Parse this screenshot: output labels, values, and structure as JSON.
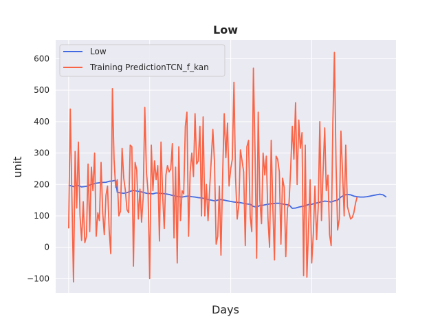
{
  "chart_data": {
    "type": "line",
    "title": "Low",
    "xlabel": "Days",
    "ylabel": "unit",
    "ylim": [
      -145,
      660
    ],
    "xlim": [
      -8,
      202
    ],
    "yticks": [
      -100,
      0,
      100,
      200,
      300,
      400,
      500,
      600
    ],
    "ytick_labels": [
      "−100",
      "0",
      "100",
      "200",
      "300",
      "400",
      "500",
      "600"
    ],
    "xticks": [
      0,
      50,
      100,
      150
    ],
    "grid": true,
    "legend_position": "upper-left",
    "colors": {
      "low": "#4169e1",
      "prediction": "#fa6446",
      "background": "#eaeaf2",
      "grid": "#ffffff"
    },
    "series": [
      {
        "name": "Low",
        "points": [
          [
            0,
            198
          ],
          [
            3,
            193
          ],
          [
            5,
            198
          ],
          [
            8,
            192
          ],
          [
            11,
            194
          ],
          [
            14,
            200
          ],
          [
            17,
            204
          ],
          [
            20,
            206
          ],
          [
            23,
            207
          ],
          [
            25,
            210
          ],
          [
            27,
            211
          ],
          [
            29,
            213
          ],
          [
            30,
            175
          ],
          [
            32,
            173
          ],
          [
            34,
            172
          ],
          [
            36,
            174
          ],
          [
            38,
            178
          ],
          [
            40,
            181
          ],
          [
            42,
            179
          ],
          [
            44,
            177
          ],
          [
            46,
            175
          ],
          [
            48,
            172
          ],
          [
            50,
            171
          ],
          [
            52,
            170
          ],
          [
            54,
            173
          ],
          [
            56,
            172
          ],
          [
            58,
            171
          ],
          [
            60,
            170
          ],
          [
            62,
            168
          ],
          [
            64,
            165
          ],
          [
            66,
            163
          ],
          [
            68,
            161
          ],
          [
            70,
            160
          ],
          [
            72,
            162
          ],
          [
            74,
            163
          ],
          [
            76,
            161
          ],
          [
            78,
            160
          ],
          [
            80,
            158
          ],
          [
            82,
            157
          ],
          [
            84,
            155
          ],
          [
            86,
            152
          ],
          [
            88,
            150
          ],
          [
            90,
            148
          ],
          [
            92,
            150
          ],
          [
            94,
            152
          ],
          [
            96,
            150
          ],
          [
            98,
            148
          ],
          [
            100,
            146
          ],
          [
            102,
            144
          ],
          [
            104,
            143
          ],
          [
            106,
            142
          ],
          [
            108,
            140
          ],
          [
            110,
            138
          ],
          [
            112,
            137
          ],
          [
            114,
            130
          ],
          [
            116,
            128
          ],
          [
            118,
            133
          ],
          [
            120,
            134
          ],
          [
            122,
            136
          ],
          [
            124,
            138
          ],
          [
            126,
            139
          ],
          [
            128,
            140
          ],
          [
            130,
            140
          ],
          [
            132,
            138
          ],
          [
            134,
            136
          ],
          [
            136,
            135
          ],
          [
            138,
            124
          ],
          [
            140,
            125
          ],
          [
            142,
            128
          ],
          [
            144,
            130
          ],
          [
            146,
            132
          ],
          [
            148,
            136
          ],
          [
            150,
            137
          ],
          [
            152,
            140
          ],
          [
            154,
            142
          ],
          [
            156,
            145
          ],
          [
            158,
            147
          ],
          [
            160,
            146
          ],
          [
            162,
            144
          ],
          [
            164,
            148
          ],
          [
            166,
            150
          ],
          [
            168,
            160
          ],
          [
            170,
            166
          ],
          [
            172,
            168
          ],
          [
            174,
            167
          ],
          [
            176,
            163
          ],
          [
            178,
            161
          ],
          [
            180,
            160
          ],
          [
            182,
            160
          ],
          [
            184,
            161
          ],
          [
            186,
            163
          ],
          [
            188,
            165
          ],
          [
            190,
            167
          ],
          [
            192,
            169
          ],
          [
            194,
            167
          ],
          [
            196,
            160
          ]
        ]
      },
      {
        "name": "Training PredictionTCN_f_kan",
        "points": [
          [
            0,
            60
          ],
          [
            1,
            440
          ],
          [
            3,
            -110
          ],
          [
            4,
            305
          ],
          [
            5,
            125
          ],
          [
            6,
            335
          ],
          [
            7,
            100
          ],
          [
            8,
            22
          ],
          [
            9,
            145
          ],
          [
            10,
            15
          ],
          [
            11,
            35
          ],
          [
            12,
            265
          ],
          [
            13,
            50
          ],
          [
            14,
            255
          ],
          [
            15,
            180
          ],
          [
            16,
            300
          ],
          [
            17,
            35
          ],
          [
            18,
            110
          ],
          [
            19,
            85
          ],
          [
            20,
            270
          ],
          [
            21,
            110
          ],
          [
            22,
            40
          ],
          [
            23,
            165
          ],
          [
            24,
            195
          ],
          [
            25,
            55
          ],
          [
            26,
            -20
          ],
          [
            27,
            505
          ],
          [
            28,
            280
          ],
          [
            29,
            190
          ],
          [
            30,
            215
          ],
          [
            31,
            100
          ],
          [
            32,
            115
          ],
          [
            33,
            315
          ],
          [
            34,
            220
          ],
          [
            35,
            180
          ],
          [
            36,
            120
          ],
          [
            37,
            110
          ],
          [
            38,
            325
          ],
          [
            39,
            320
          ],
          [
            40,
            -60
          ],
          [
            41,
            270
          ],
          [
            42,
            245
          ],
          [
            43,
            90
          ],
          [
            44,
            185
          ],
          [
            45,
            80
          ],
          [
            46,
            160
          ],
          [
            47,
            445
          ],
          [
            48,
            240
          ],
          [
            49,
            175
          ],
          [
            50,
            -100
          ],
          [
            51,
            325
          ],
          [
            52,
            180
          ],
          [
            53,
            275
          ],
          [
            54,
            215
          ],
          [
            55,
            260
          ],
          [
            56,
            20
          ],
          [
            57,
            335
          ],
          [
            58,
            165
          ],
          [
            59,
            60
          ],
          [
            60,
            230
          ],
          [
            61,
            260
          ],
          [
            62,
            240
          ],
          [
            63,
            250
          ],
          [
            64,
            330
          ],
          [
            65,
            30
          ],
          [
            66,
            255
          ],
          [
            67,
            -50
          ],
          [
            68,
            320
          ],
          [
            69,
            85
          ],
          [
            70,
            180
          ],
          [
            71,
            170
          ],
          [
            72,
            385
          ],
          [
            73,
            430
          ],
          [
            74,
            35
          ],
          [
            75,
            240
          ],
          [
            76,
            300
          ],
          [
            77,
            225
          ],
          [
            78,
            425
          ],
          [
            79,
            265
          ],
          [
            80,
            275
          ],
          [
            81,
            385
          ],
          [
            82,
            100
          ],
          [
            83,
            415
          ],
          [
            84,
            100
          ],
          [
            85,
            200
          ],
          [
            86,
            85
          ],
          [
            87,
            185
          ],
          [
            88,
            280
          ],
          [
            89,
            375
          ],
          [
            90,
            270
          ],
          [
            91,
            10
          ],
          [
            92,
            35
          ],
          [
            93,
            195
          ],
          [
            94,
            -25
          ],
          [
            95,
            225
          ],
          [
            96,
            425
          ],
          [
            97,
            285
          ],
          [
            98,
            395
          ],
          [
            99,
            195
          ],
          [
            100,
            250
          ],
          [
            101,
            280
          ],
          [
            102,
            525
          ],
          [
            103,
            225
          ],
          [
            104,
            90
          ],
          [
            105,
            135
          ],
          [
            106,
            310
          ],
          [
            107,
            275
          ],
          [
            108,
            240
          ],
          [
            109,
            5
          ],
          [
            110,
            320
          ],
          [
            111,
            340
          ],
          [
            112,
            100
          ],
          [
            113,
            50
          ],
          [
            114,
            570
          ],
          [
            115,
            310
          ],
          [
            116,
            -35
          ],
          [
            117,
            430
          ],
          [
            118,
            150
          ],
          [
            119,
            75
          ],
          [
            120,
            300
          ],
          [
            121,
            230
          ],
          [
            122,
            290
          ],
          [
            123,
            90
          ],
          [
            124,
            0
          ],
          [
            125,
            340
          ],
          [
            126,
            125
          ],
          [
            127,
            -40
          ],
          [
            128,
            290
          ],
          [
            129,
            280
          ],
          [
            130,
            240
          ],
          [
            131,
            10
          ],
          [
            132,
            220
          ],
          [
            133,
            190
          ],
          [
            134,
            -30
          ],
          [
            135,
            125
          ],
          [
            136,
            140
          ],
          [
            137,
            250
          ],
          [
            138,
            385
          ],
          [
            139,
            280
          ],
          [
            140,
            460
          ],
          [
            141,
            200
          ],
          [
            142,
            405
          ],
          [
            143,
            315
          ],
          [
            144,
            365
          ],
          [
            145,
            -90
          ],
          [
            146,
            325
          ],
          [
            147,
            -95
          ],
          [
            148,
            55
          ],
          [
            149,
            215
          ],
          [
            150,
            -50
          ],
          [
            151,
            45
          ],
          [
            152,
            195
          ],
          [
            153,
            25
          ],
          [
            154,
            130
          ],
          [
            155,
            400
          ],
          [
            156,
            85
          ],
          [
            157,
            240
          ],
          [
            158,
            380
          ],
          [
            159,
            180
          ],
          [
            160,
            230
          ],
          [
            161,
            40
          ],
          [
            162,
            5
          ],
          [
            163,
            390
          ],
          [
            164,
            620
          ],
          [
            165,
            265
          ],
          [
            166,
            55
          ],
          [
            167,
            90
          ],
          [
            168,
            370
          ],
          [
            169,
            240
          ],
          [
            170,
            100
          ],
          [
            171,
            325
          ],
          [
            172,
            130
          ],
          [
            173,
            110
          ],
          [
            174,
            90
          ],
          [
            175,
            95
          ],
          [
            176,
            110
          ],
          [
            177,
            140
          ],
          [
            178,
            160
          ]
        ]
      }
    ]
  }
}
